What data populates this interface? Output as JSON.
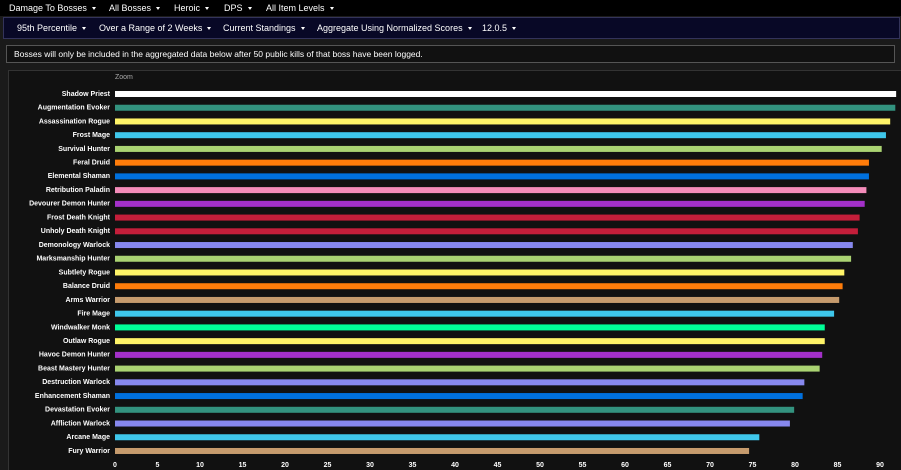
{
  "filters": [
    "Damage To Bosses",
    "All Bosses",
    "Heroic",
    "DPS",
    "All Item Levels"
  ],
  "options": [
    "95th Percentile",
    "Over a Range of 2 Weeks",
    "Current Standings",
    "Aggregate Using Normalized Scores",
    "12.0.5"
  ],
  "notice": "Bosses will only be included in the aggregated data below after 50 public kills of that boss have been logged.",
  "chart_data": {
    "type": "hbar",
    "zoom_label": "Zoom",
    "categories": [
      "Shadow Priest",
      "Augmentation Evoker",
      "Assassination Rogue",
      "Frost Mage",
      "Survival Hunter",
      "Feral Druid",
      "Elemental Shaman",
      "Retribution Paladin",
      "Devourer Demon Hunter",
      "Frost Death Knight",
      "Unholy Death Knight",
      "Demonology Warlock",
      "Marksmanship Hunter",
      "Subtlety Rogue",
      "Balance Druid",
      "Arms Warrior",
      "Fire Mage",
      "Windwalker Monk",
      "Outlaw Rogue",
      "Havoc Demon Hunter",
      "Beast Mastery Hunter",
      "Destruction Warlock",
      "Enhancement Shaman",
      "Devastation Evoker",
      "Affliction Warlock",
      "Arcane Mage",
      "Fury Warrior"
    ],
    "values": [
      91.9,
      91.8,
      91.2,
      90.7,
      90.2,
      88.7,
      88.7,
      88.4,
      88.2,
      87.6,
      87.4,
      86.8,
      86.6,
      85.8,
      85.6,
      85.2,
      84.6,
      83.5,
      83.5,
      83.2,
      82.9,
      81.1,
      80.9,
      79.9,
      79.4,
      75.8,
      74.6
    ],
    "colors": [
      "#ffffff",
      "#33937f",
      "#fff468",
      "#3fc7eb",
      "#aad372",
      "#ff7c0a",
      "#0070dd",
      "#f48cba",
      "#a330c9",
      "#c41e3a",
      "#c41e3a",
      "#8788ee",
      "#aad372",
      "#fff468",
      "#ff7c0a",
      "#c69b6d",
      "#3fc7eb",
      "#00ff98",
      "#fff468",
      "#a330c9",
      "#aad372",
      "#8788ee",
      "#0070dd",
      "#33937f",
      "#8788ee",
      "#3fc7eb",
      "#c69b6d"
    ],
    "xlim": [
      0,
      92
    ],
    "xticks": [
      0,
      5,
      10,
      15,
      20,
      25,
      30,
      35,
      40,
      45,
      50,
      55,
      60,
      65,
      70,
      75,
      80,
      85,
      90
    ]
  }
}
